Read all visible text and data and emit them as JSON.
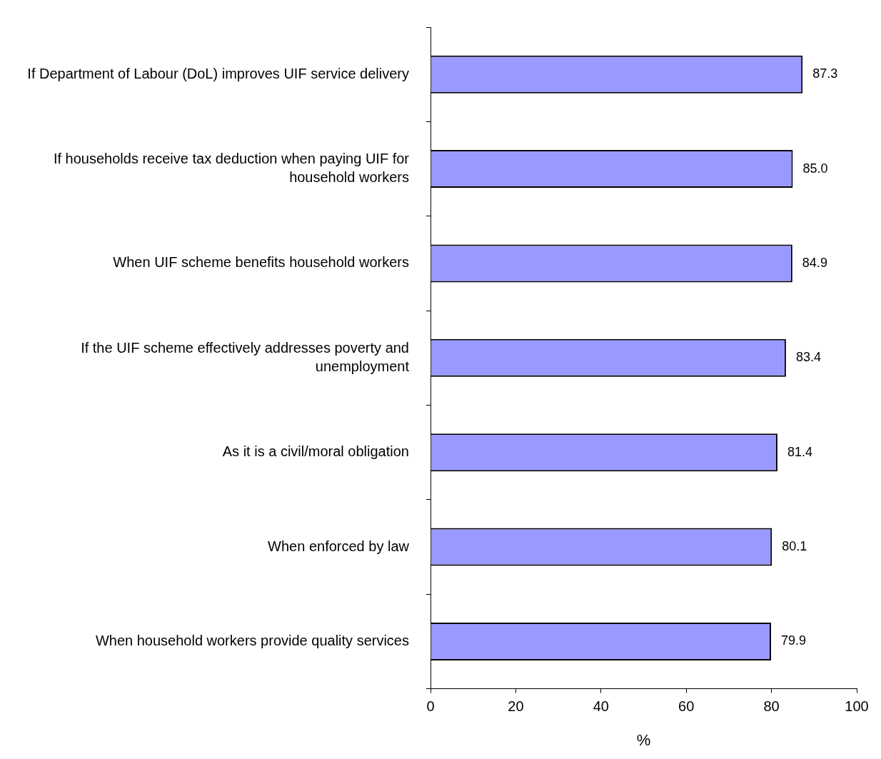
{
  "chart_data": {
    "type": "bar",
    "orientation": "horizontal",
    "categories": [
      "If Department of Labour (DoL) improves UIF service delivery",
      "If households receive tax deduction when paying UIF for household workers",
      "When UIF scheme benefits household workers",
      "If the UIF scheme effectively addresses poverty and unemployment",
      "As it is a civil/moral obligation",
      "When enforced by law",
      "When household workers provide quality services"
    ],
    "values": [
      87.3,
      85.0,
      84.9,
      83.4,
      81.4,
      80.1,
      79.9
    ],
    "value_labels": [
      "87.3",
      "85.0",
      "84.9",
      "83.4",
      "81.4",
      "80.1",
      "79.9"
    ],
    "color": "#9999ff",
    "xlabel": "%",
    "xlim": [
      0,
      100
    ],
    "xticks": [
      0,
      20,
      40,
      60,
      80,
      100
    ],
    "grid": false,
    "legend": false
  }
}
